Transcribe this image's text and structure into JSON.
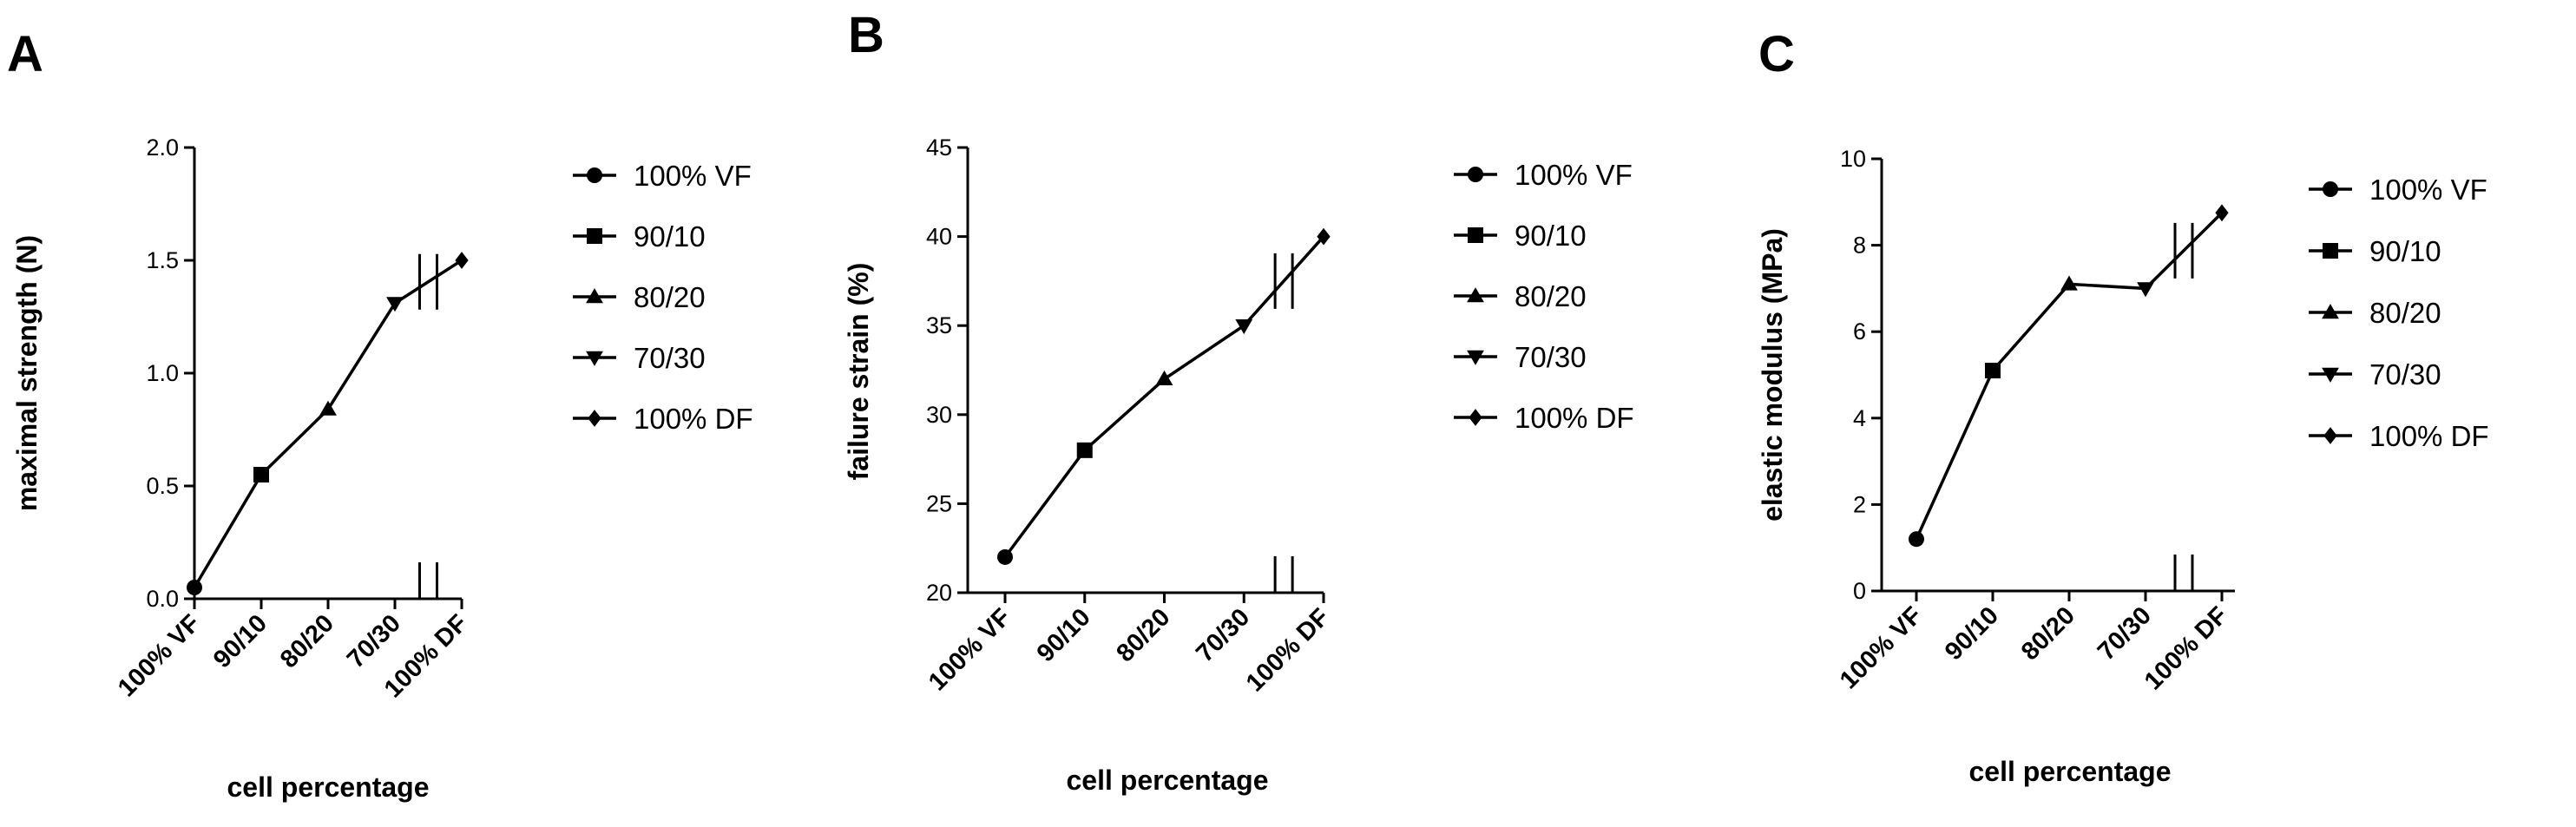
{
  "chart_data": [
    {
      "panel": "A",
      "type": "line",
      "categories": [
        "100% VF",
        "90/10",
        "80/20",
        "70/30",
        "100% DF"
      ],
      "values": [
        0.05,
        0.55,
        0.84,
        1.31,
        1.5
      ],
      "xlabel": "cell percentage",
      "ylabel": "maximal strength (N)",
      "ylim": [
        0.0,
        2.0
      ],
      "yticks": [
        "0.0",
        "0.5",
        "1.0",
        "1.5",
        "2.0"
      ],
      "legend": [
        "100% VF",
        "90/10",
        "80/20",
        "70/30",
        "100% DF"
      ]
    },
    {
      "panel": "B",
      "type": "line",
      "categories": [
        "100% VF",
        "90/10",
        "80/20",
        "70/30",
        "100% DF"
      ],
      "values": [
        22,
        28,
        32,
        35,
        40
      ],
      "xlabel": "cell percentage",
      "ylabel": "failure strain (%)",
      "ylim": [
        20,
        45
      ],
      "yticks": [
        "20",
        "25",
        "30",
        "35",
        "40",
        "45"
      ],
      "legend": [
        "100% VF",
        "90/10",
        "80/20",
        "70/30",
        "100% DF"
      ]
    },
    {
      "panel": "C",
      "type": "line",
      "categories": [
        "100% VF",
        "90/10",
        "80/20",
        "70/30",
        "100% DF"
      ],
      "values": [
        1.2,
        5.1,
        7.1,
        7.0,
        8.75
      ],
      "xlabel": "cell percentage",
      "ylabel": "elastic modulus (MPa)",
      "ylim": [
        0,
        10
      ],
      "yticks": [
        "0",
        "2",
        "4",
        "6",
        "8",
        "10"
      ],
      "legend": [
        "100% VF",
        "90/10",
        "80/20",
        "70/30",
        "100% DF"
      ]
    }
  ],
  "markers": [
    "circle",
    "square",
    "triangle-up",
    "triangle-down",
    "diamond"
  ]
}
